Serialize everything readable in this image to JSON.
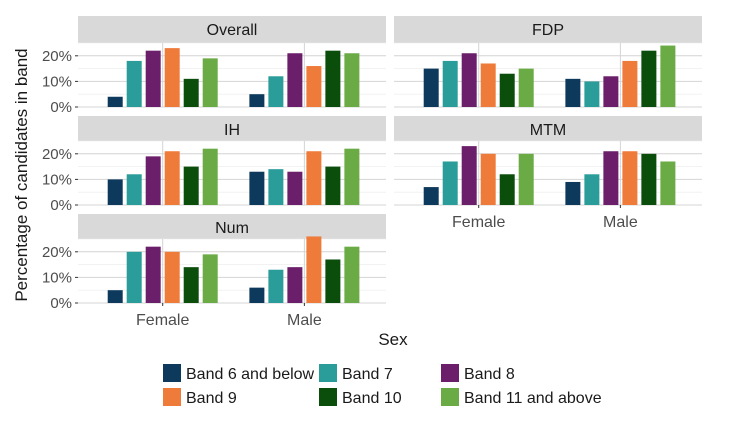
{
  "chart_data": {
    "type": "bar",
    "xlabel": "Sex",
    "ylabel": "Percentage of candidates in band",
    "categories": [
      "Female",
      "Male"
    ],
    "yticks": [
      "0%",
      "10%",
      "20%"
    ],
    "ylim": [
      0,
      25
    ],
    "grid": true,
    "legend_position": "bottom",
    "bands": [
      {
        "name": "Band 6 and below",
        "color": "#0d3a5c"
      },
      {
        "name": "Band 7",
        "color": "#2a9d9a"
      },
      {
        "name": "Band 8",
        "color": "#6b1f6b"
      },
      {
        "name": "Band 9",
        "color": "#ef7b3b"
      },
      {
        "name": "Band 10",
        "color": "#0b4d0b"
      },
      {
        "name": "Band 11 and above",
        "color": "#6aab45"
      }
    ],
    "panels": [
      {
        "title": "Overall",
        "values": {
          "Female": [
            4,
            18,
            22,
            23,
            11,
            19
          ],
          "Male": [
            5,
            12,
            21,
            16,
            22,
            21
          ]
        }
      },
      {
        "title": "FDP",
        "values": {
          "Female": [
            15,
            18,
            21,
            17,
            13,
            15
          ],
          "Male": [
            11,
            10,
            12,
            18,
            22,
            24
          ]
        }
      },
      {
        "title": "IH",
        "values": {
          "Female": [
            10,
            12,
            19,
            21,
            15,
            22
          ],
          "Male": [
            13,
            14,
            13,
            21,
            15,
            22
          ]
        }
      },
      {
        "title": "MTM",
        "values": {
          "Female": [
            7,
            17,
            23,
            20,
            12,
            20
          ],
          "Male": [
            9,
            12,
            21,
            21,
            20,
            17
          ]
        }
      },
      {
        "title": "Num",
        "values": {
          "Female": [
            5,
            20,
            22,
            20,
            14,
            19
          ],
          "Male": [
            6,
            13,
            14,
            26,
            17,
            22
          ]
        }
      }
    ]
  }
}
